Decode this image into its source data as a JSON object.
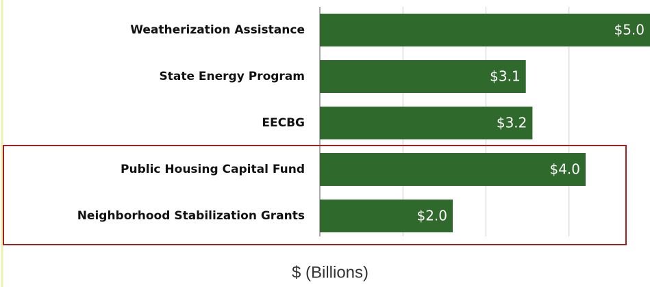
{
  "chart_data": {
    "type": "bar",
    "orientation": "horizontal",
    "categories": [
      "Weatherization Assistance",
      "State Energy Program",
      "EECBG",
      "Public Housing Capital Fund",
      "Neighborhood Stabilization Grants"
    ],
    "values": [
      5.0,
      3.1,
      3.2,
      4.0,
      2.0
    ],
    "value_labels": [
      "$5.0",
      "$3.1",
      "$3.2",
      "$4.0",
      "$2.0"
    ],
    "color": "#2f6a2c",
    "xlim": [
      0,
      5
    ],
    "xticks": [
      0,
      1.25,
      2.5,
      3.75,
      5
    ],
    "grid": true,
    "x_label": "$ (Billions)"
  }
}
